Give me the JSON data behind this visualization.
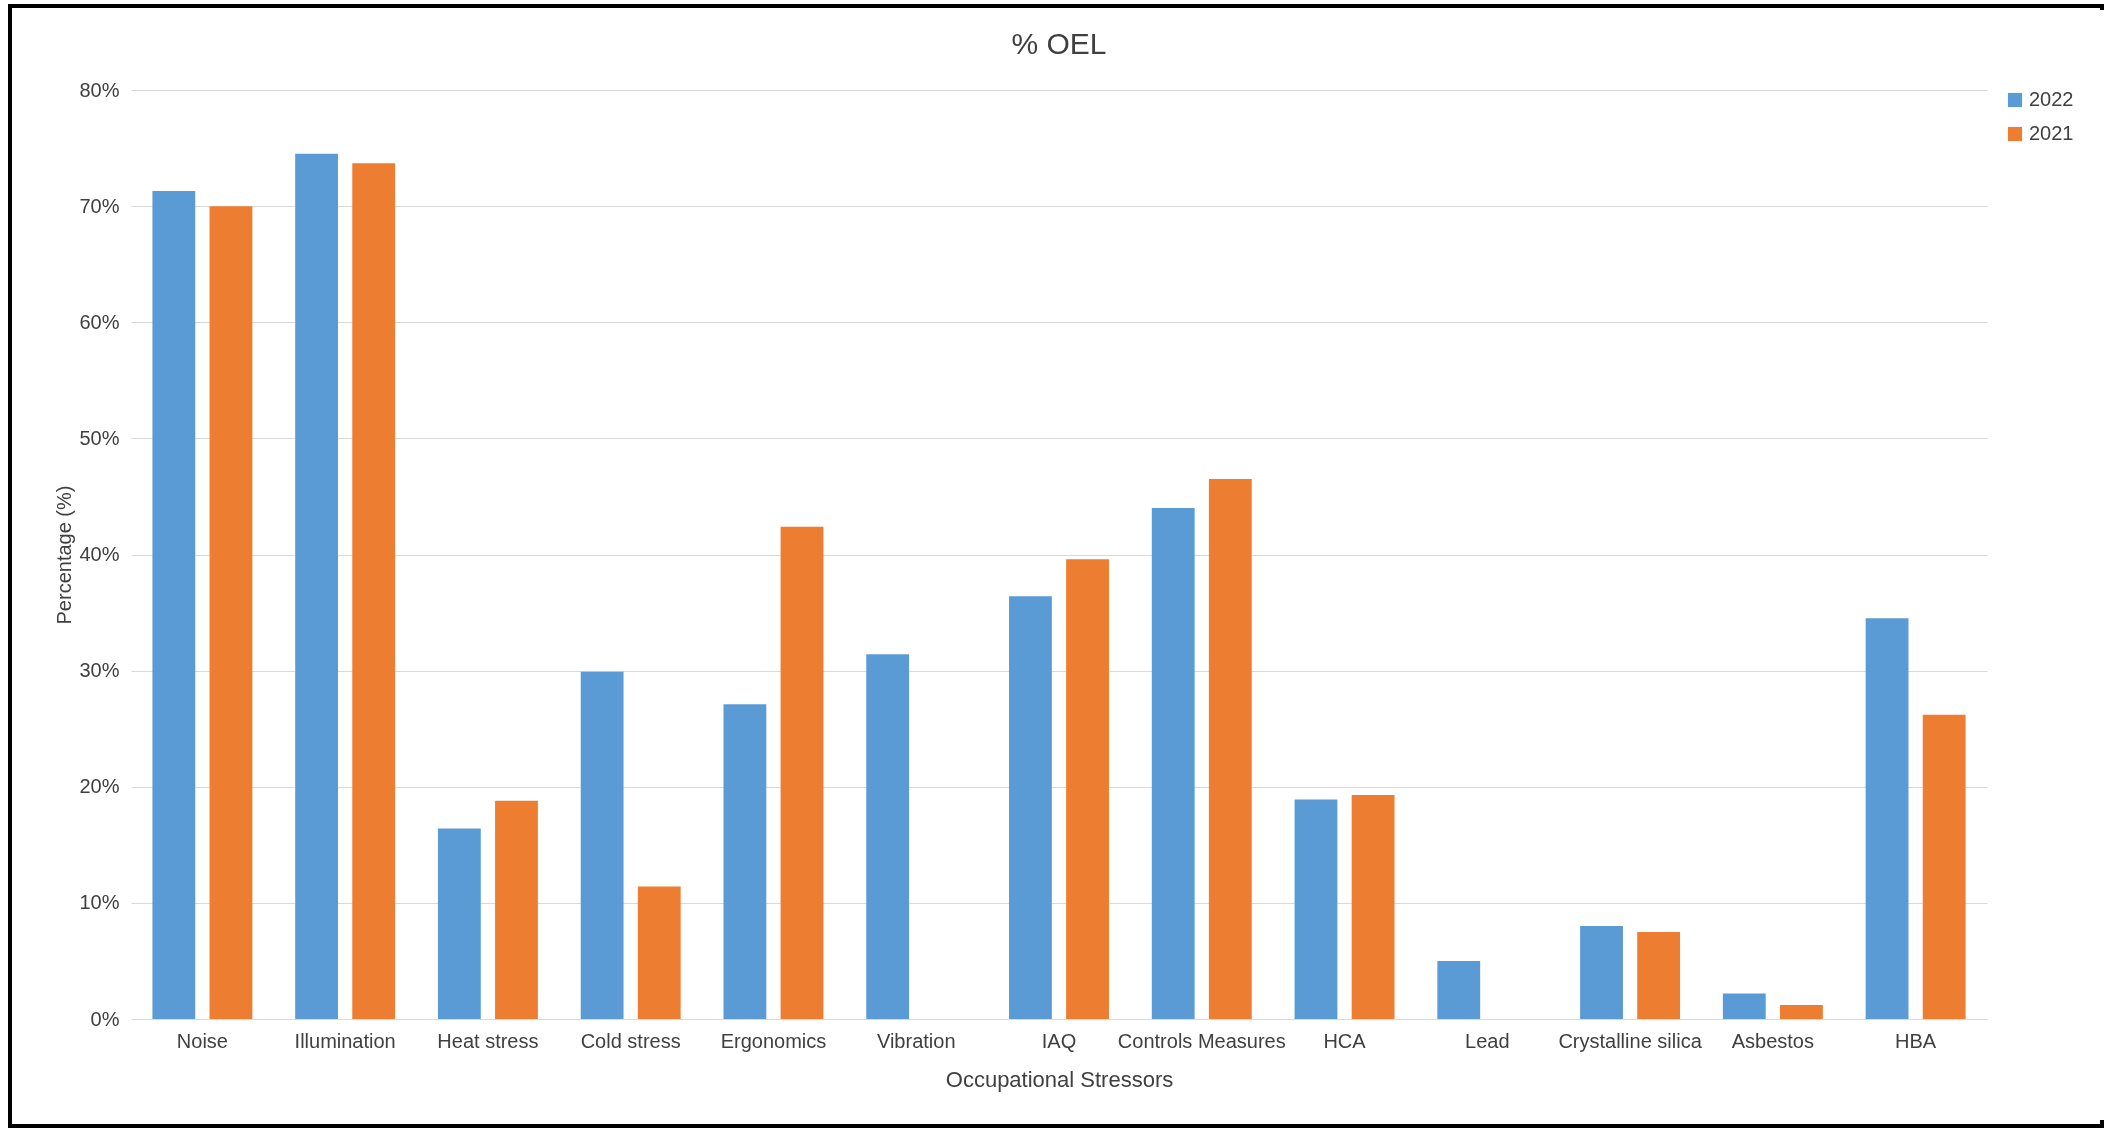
{
  "chart_data": {
    "type": "bar",
    "title": "% OEL",
    "xlabel": "Occupational Stressors",
    "ylabel": "Percentage (%)",
    "categories": [
      "Noise",
      "Illumination",
      "Heat stress",
      "Cold stress",
      "Ergonomics",
      "Vibration",
      "IAQ",
      "Controls Measures",
      "HCA",
      "Lead",
      "Crystalline silica",
      "Asbestos",
      "HBA"
    ],
    "series": [
      {
        "name": "2022",
        "color": "#5b9bd5",
        "values": [
          71.3,
          74.5,
          16.4,
          29.9,
          27.1,
          31.4,
          36.4,
          44.0,
          18.9,
          5.0,
          8.0,
          2.2,
          34.5
        ]
      },
      {
        "name": "2021",
        "color": "#ed7d31",
        "values": [
          70.0,
          73.7,
          18.8,
          11.4,
          42.4,
          null,
          39.6,
          46.5,
          19.3,
          null,
          7.5,
          1.2,
          26.2
        ]
      }
    ],
    "ylim": [
      0,
      80
    ],
    "yticks": [
      {
        "value": 0,
        "label": "0%"
      },
      {
        "value": 10,
        "label": "10%"
      },
      {
        "value": 20,
        "label": "20%"
      },
      {
        "value": 30,
        "label": "30%"
      },
      {
        "value": 40,
        "label": "40%"
      },
      {
        "value": 50,
        "label": "50%"
      },
      {
        "value": 60,
        "label": "60%"
      },
      {
        "value": 70,
        "label": "70%"
      },
      {
        "value": 80,
        "label": "80%"
      }
    ],
    "grid": "y",
    "legend": "right"
  }
}
